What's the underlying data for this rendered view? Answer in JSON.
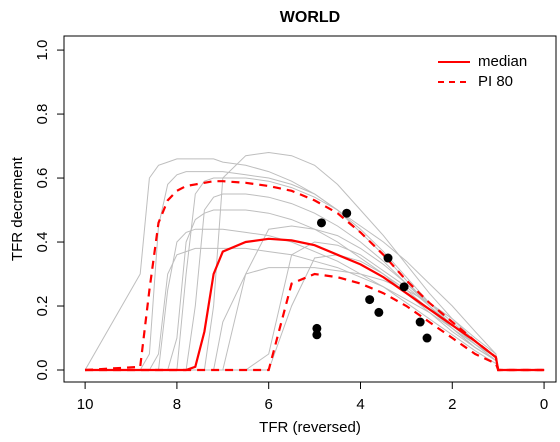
{
  "chart_data": {
    "type": "line",
    "title": "WORLD",
    "xlabel": "TFR (reversed)",
    "ylabel": "TFR decrement",
    "xlim": [
      10.46,
      -0.26
    ],
    "ylim": [
      -0.0375,
      1.044
    ],
    "xticks": [
      10,
      8,
      6,
      4,
      2,
      0
    ],
    "yticks": [
      {
        "value": 0,
        "label": "0.0"
      },
      {
        "value": 0.2,
        "label": "0.2"
      },
      {
        "value": 0.4,
        "label": "0.4"
      },
      {
        "value": 0.6,
        "label": "0.6"
      },
      {
        "value": 0.8,
        "label": "0.8"
      },
      {
        "value": 1,
        "label": "1.0"
      }
    ],
    "legend": "topright",
    "x": [
      10,
      8.8,
      8.6,
      8.4,
      8.2,
      8,
      7.8,
      7.6,
      7.4,
      7.2,
      7,
      6.5,
      6,
      5.5,
      5,
      4.5,
      4,
      3.5,
      3,
      2.5,
      2,
      1.5,
      1.05,
      1,
      0
    ],
    "trajectories": {
      "color": "#bebebe",
      "values": [
        [
          0,
          0,
          0.05,
          0.45,
          0.58,
          0.61,
          0.62,
          0.62,
          0.62,
          0.62,
          0.62,
          0.61,
          0.6,
          0.58,
          0.55,
          0.5,
          0.44,
          0.37,
          0.29,
          0.21,
          0.14,
          0.08,
          0.04,
          0,
          0
        ],
        [
          0,
          0,
          0,
          0,
          0,
          0.1,
          0.4,
          0.47,
          0.49,
          0.5,
          0.5,
          0.5,
          0.49,
          0.47,
          0.44,
          0.4,
          0.35,
          0.3,
          0.24,
          0.18,
          0.12,
          0.07,
          0.03,
          0,
          0
        ],
        [
          0,
          0,
          0,
          0,
          0,
          0,
          0,
          0,
          0,
          0.2,
          0.6,
          0.67,
          0.68,
          0.67,
          0.64,
          0.58,
          0.5,
          0.42,
          0.33,
          0.24,
          0.16,
          0.09,
          0.04,
          0,
          0
        ],
        [
          0,
          0,
          0,
          0,
          0,
          0,
          0,
          0,
          0,
          0,
          0,
          0,
          0.05,
          0.36,
          0.4,
          0.39,
          0.36,
          0.31,
          0.26,
          0.2,
          0.14,
          0.08,
          0.03,
          0,
          0
        ],
        [
          0,
          0,
          0,
          0.05,
          0.3,
          0.36,
          0.37,
          0.38,
          0.38,
          0.38,
          0.38,
          0.38,
          0.37,
          0.36,
          0.34,
          0.32,
          0.29,
          0.26,
          0.22,
          0.18,
          0.13,
          0.08,
          0.04,
          0,
          0
        ],
        [
          0,
          0,
          0,
          0,
          0,
          0,
          0,
          0.2,
          0.5,
          0.54,
          0.55,
          0.55,
          0.54,
          0.52,
          0.49,
          0.45,
          0.4,
          0.34,
          0.27,
          0.2,
          0.14,
          0.08,
          0.03,
          0,
          0
        ],
        [
          0,
          0,
          0,
          0,
          0,
          0,
          0,
          0,
          0,
          0,
          0,
          0.3,
          0.44,
          0.45,
          0.44,
          0.42,
          0.38,
          0.33,
          0.27,
          0.21,
          0.15,
          0.09,
          0.04,
          0,
          0
        ],
        [
          0,
          0.3,
          0.6,
          0.64,
          0.65,
          0.66,
          0.66,
          0.66,
          0.66,
          0.66,
          0.65,
          0.64,
          0.62,
          0.59,
          0.55,
          0.5,
          0.43,
          0.36,
          0.28,
          0.2,
          0.13,
          0.07,
          0.03,
          0,
          0
        ],
        [
          0,
          0,
          0,
          0,
          0,
          0,
          0,
          0,
          0,
          0,
          0.15,
          0.3,
          0.32,
          0.32,
          0.32,
          0.31,
          0.3,
          0.28,
          0.25,
          0.21,
          0.16,
          0.1,
          0.05,
          0,
          0
        ],
        [
          0,
          0,
          0,
          0,
          0,
          0,
          0,
          0,
          0,
          0,
          0,
          0,
          0,
          0.2,
          0.35,
          0.36,
          0.34,
          0.3,
          0.25,
          0.19,
          0.13,
          0.07,
          0.03,
          0,
          0
        ],
        [
          0,
          0,
          0,
          0,
          0,
          0,
          0.3,
          0.55,
          0.59,
          0.6,
          0.6,
          0.6,
          0.59,
          0.57,
          0.54,
          0.5,
          0.45,
          0.4,
          0.34,
          0.27,
          0.2,
          0.12,
          0.05,
          0,
          0
        ],
        [
          0,
          0,
          0,
          0,
          0.25,
          0.4,
          0.43,
          0.44,
          0.44,
          0.44,
          0.44,
          0.43,
          0.42,
          0.4,
          0.37,
          0.34,
          0.3,
          0.26,
          0.21,
          0.16,
          0.11,
          0.06,
          0.02,
          0,
          0
        ]
      ]
    },
    "series": [
      {
        "name": "median",
        "color": "#ff0000",
        "dashed": false,
        "values": [
          0,
          0,
          0,
          0,
          0,
          0,
          0,
          0.01,
          0.12,
          0.3,
          0.37,
          0.4,
          0.41,
          0.405,
          0.39,
          0.36,
          0.33,
          0.29,
          0.24,
          0.19,
          0.14,
          0.09,
          0.04,
          0,
          0
        ]
      },
      {
        "name": "PI 80",
        "color": "#ff0000",
        "dashed": true,
        "values": [
          0,
          0.01,
          0.25,
          0.46,
          0.53,
          0.56,
          0.575,
          0.58,
          0.585,
          0.59,
          0.59,
          0.585,
          0.575,
          0.56,
          0.53,
          0.49,
          0.43,
          0.36,
          0.28,
          0.21,
          0.15,
          0.09,
          0.04,
          0,
          0
        ]
      },
      {
        "name": null,
        "color": "#ff0000",
        "dashed": true,
        "values": [
          0,
          0,
          0,
          0,
          0,
          0,
          0,
          0,
          0,
          0,
          0,
          0,
          0,
          0.27,
          0.3,
          0.29,
          0.27,
          0.24,
          0.2,
          0.15,
          0.1,
          0.05,
          0.02,
          0,
          0
        ]
      }
    ],
    "points": {
      "color": "#000000",
      "x": [
        4.85,
        4.3,
        3.4,
        3.8,
        3.6,
        3.05,
        2.7,
        2.55,
        4.95,
        4.95
      ],
      "y": [
        0.46,
        0.49,
        0.35,
        0.22,
        0.18,
        0.26,
        0.15,
        0.1,
        0.13,
        0.11
      ]
    }
  }
}
